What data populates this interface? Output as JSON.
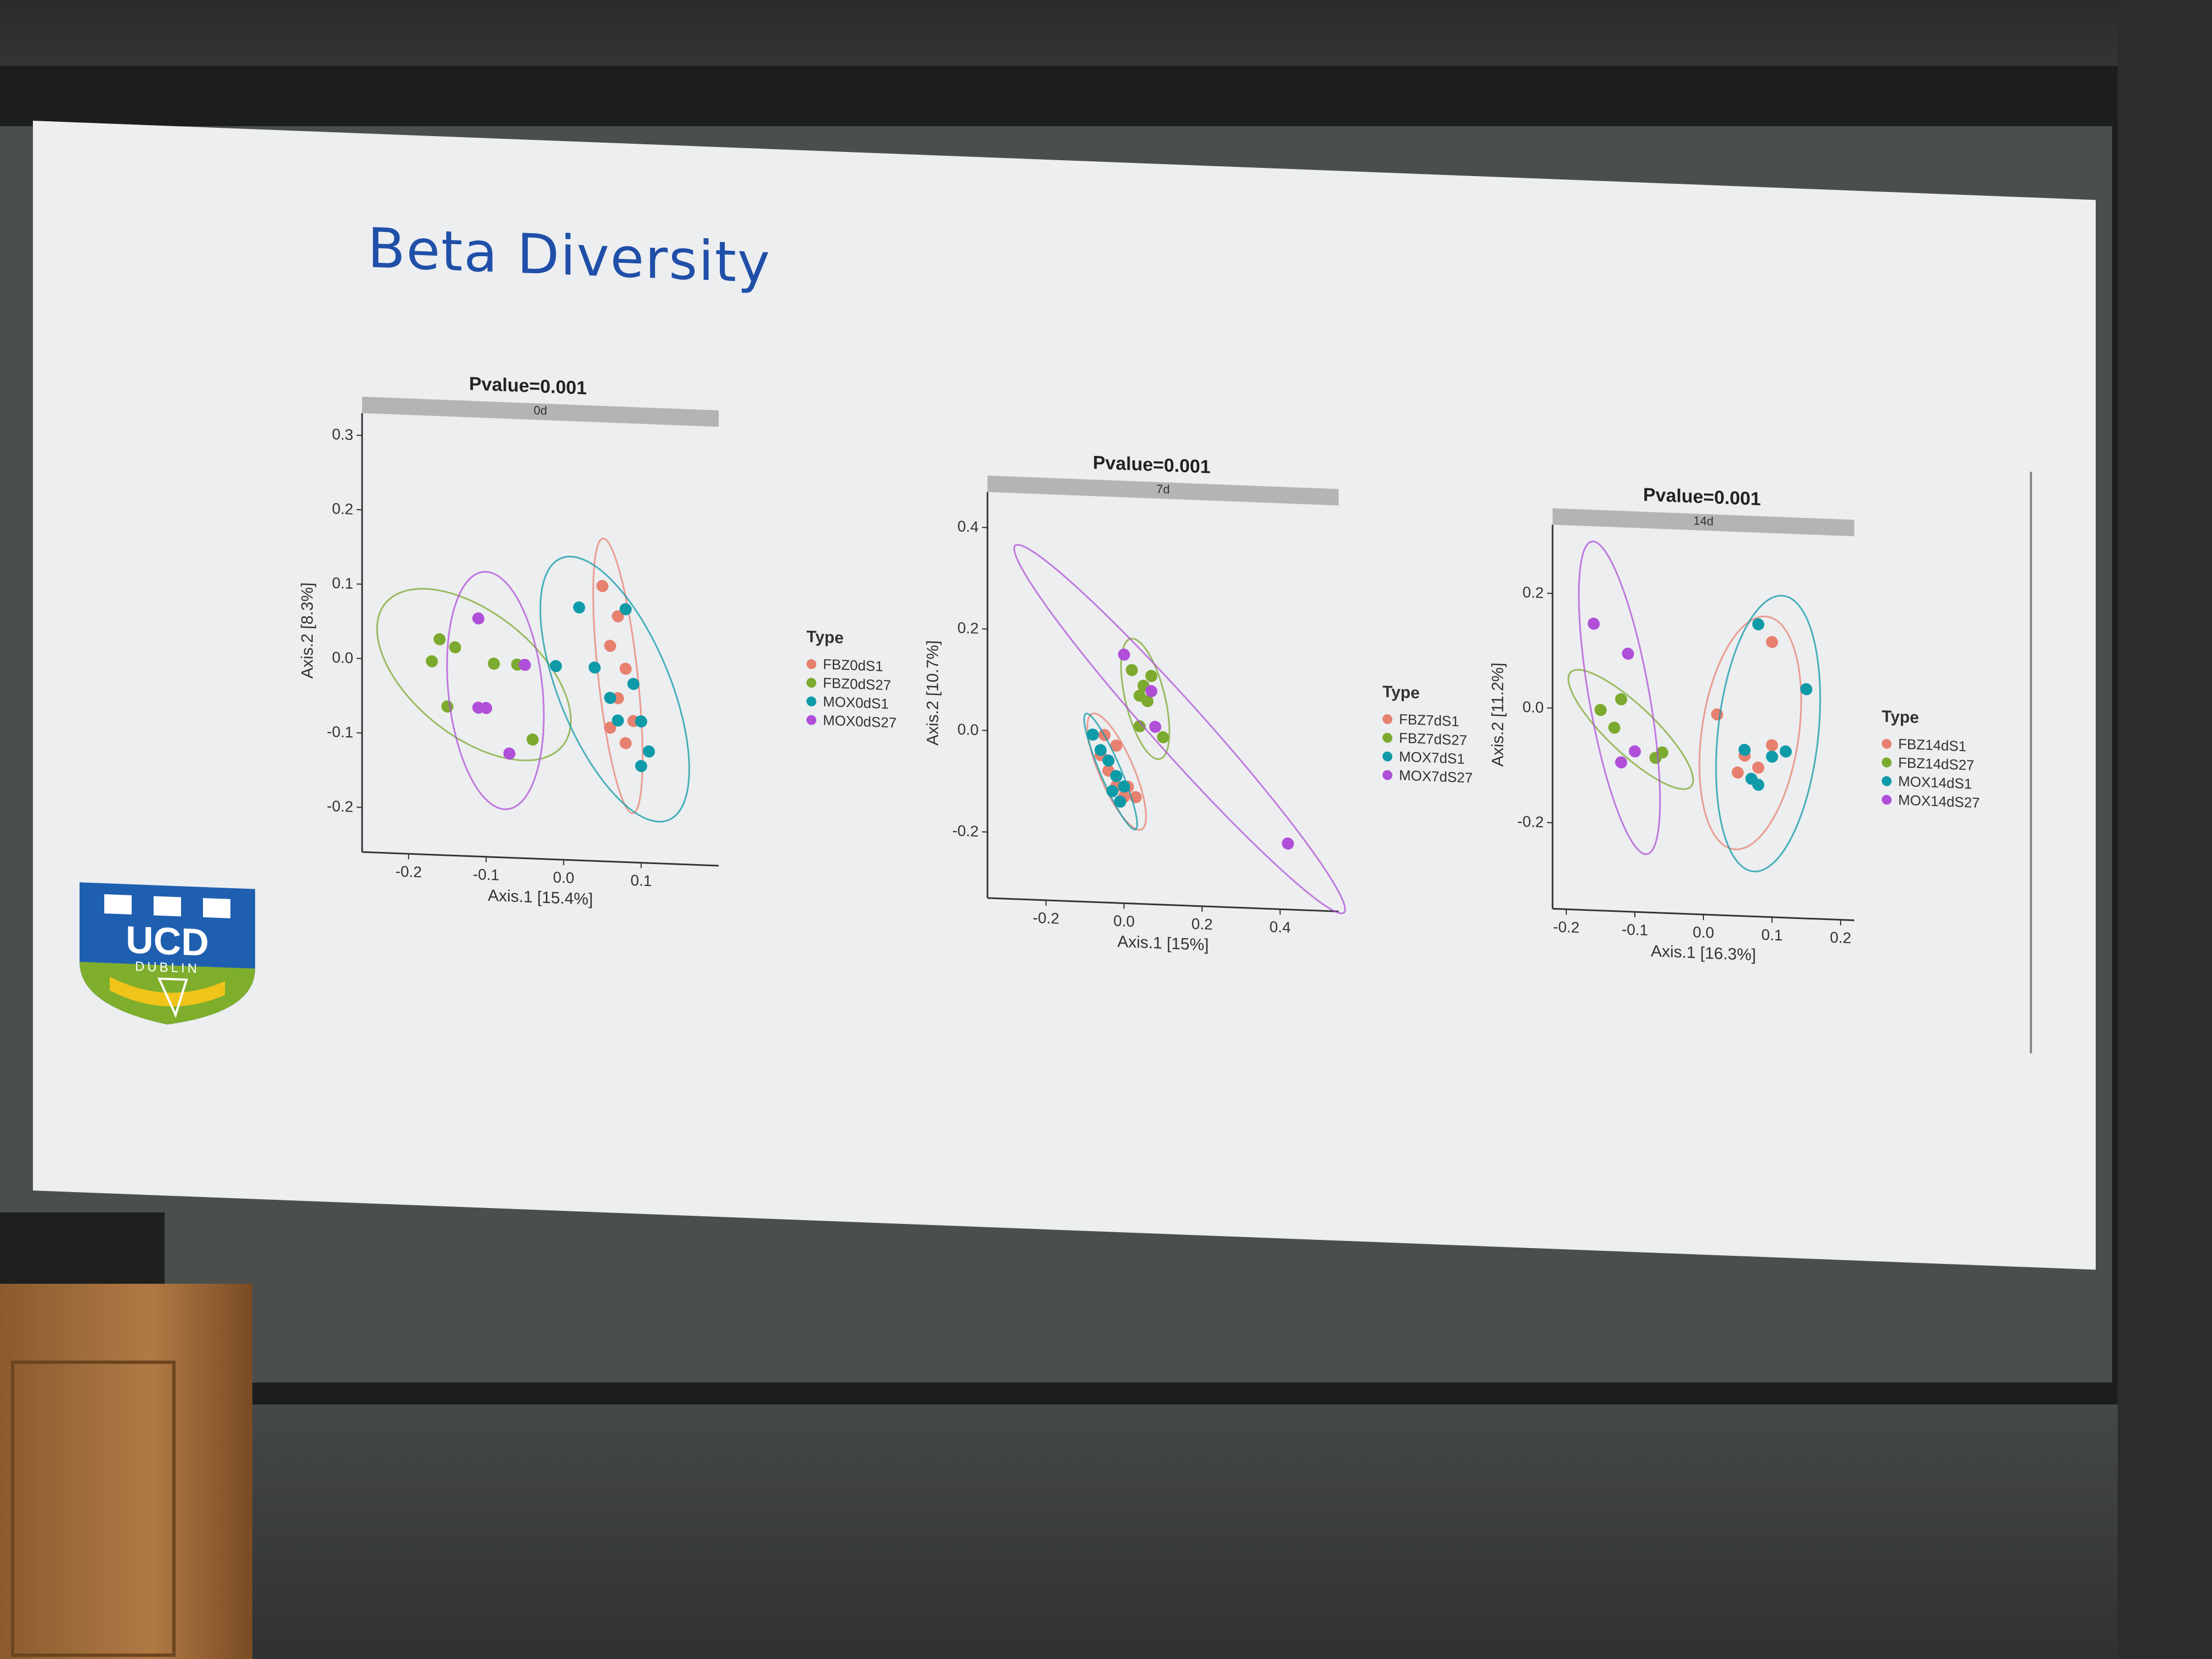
{
  "slide": {
    "title": "Beta Diversity",
    "logo": {
      "text": "UCD",
      "subtext": "DUBLIN"
    }
  },
  "legend_title": "Type",
  "colors": {
    "fbz_s1": "#e8806f",
    "fbz_s27": "#7caa2e",
    "mox_s1": "#0f9aa8",
    "mox_s27": "#b04fd8"
  },
  "chart_data": [
    {
      "type": "scatter",
      "title": "Pvalue=0.001",
      "facet": "0d",
      "xlabel": "Axis.1   [15.4%]",
      "ylabel": "Axis.2  [8.3%]",
      "xticks": [
        "-0.2",
        "-0.1",
        "0.0",
        "0.1"
      ],
      "yticks": [
        "0.3",
        "0.2",
        "0.1",
        "0.0",
        "-0.1",
        "-0.2"
      ],
      "xlim": [
        -0.26,
        0.2
      ],
      "ylim": [
        -0.26,
        0.33
      ],
      "series": [
        {
          "name": "FBZ0dS1",
          "color": "#e8806f",
          "points": [
            [
              0.05,
              0.11
            ],
            [
              0.07,
              0.07
            ],
            [
              0.06,
              0.03
            ],
            [
              0.08,
              0.0
            ],
            [
              0.07,
              -0.04
            ],
            [
              0.06,
              -0.08
            ],
            [
              0.09,
              -0.07
            ],
            [
              0.08,
              -0.1
            ]
          ]
        },
        {
          "name": "FBZ0dS27",
          "color": "#7caa2e",
          "points": [
            [
              -0.16,
              0.03
            ],
            [
              -0.17,
              0.0
            ],
            [
              -0.14,
              0.02
            ],
            [
              -0.15,
              -0.06
            ],
            [
              -0.09,
              0.0
            ],
            [
              -0.06,
              0.0
            ],
            [
              -0.04,
              -0.1
            ]
          ]
        },
        {
          "name": "MOX0dS1",
          "color": "#0f9aa8",
          "points": [
            [
              0.02,
              0.08
            ],
            [
              0.08,
              0.08
            ],
            [
              -0.01,
              0.0
            ],
            [
              0.04,
              0.0
            ],
            [
              0.09,
              -0.02
            ],
            [
              0.06,
              -0.04
            ],
            [
              0.1,
              -0.07
            ],
            [
              0.11,
              -0.11
            ],
            [
              0.07,
              -0.07
            ],
            [
              0.1,
              -0.13
            ]
          ]
        },
        {
          "name": "MOX0dS27",
          "color": "#b04fd8",
          "points": [
            [
              -0.11,
              0.06
            ],
            [
              -0.1,
              -0.06
            ],
            [
              -0.11,
              -0.06
            ],
            [
              -0.07,
              -0.12
            ],
            [
              -0.05,
              0.0
            ]
          ]
        }
      ]
    },
    {
      "type": "scatter",
      "title": "Pvalue=0.001",
      "facet": "7d",
      "xlabel": "Axis.1   [15%]",
      "ylabel": "Axis.2  [10.7%]",
      "xticks": [
        "-0.2",
        "0.0",
        "0.2",
        "0.4"
      ],
      "yticks": [
        "0.4",
        "0.2",
        "0.0",
        "-0.2"
      ],
      "xlim": [
        -0.35,
        0.55
      ],
      "ylim": [
        -0.33,
        0.47
      ],
      "series": [
        {
          "name": "FBZ7dS1",
          "color": "#e8806f",
          "points": [
            [
              -0.06,
              -0.04
            ],
            [
              -0.04,
              -0.07
            ],
            [
              -0.02,
              -0.1
            ],
            [
              0.01,
              -0.1
            ],
            [
              0.03,
              -0.12
            ],
            [
              -0.05,
              0.0
            ],
            [
              -0.02,
              -0.02
            ],
            [
              0.0,
              -0.12
            ]
          ]
        },
        {
          "name": "FBZ7dS27",
          "color": "#7caa2e",
          "points": [
            [
              0.02,
              0.13
            ],
            [
              0.05,
              0.1
            ],
            [
              0.07,
              0.12
            ],
            [
              0.04,
              0.08
            ],
            [
              0.06,
              0.07
            ],
            [
              0.04,
              0.02
            ],
            [
              0.1,
              0.0
            ]
          ]
        },
        {
          "name": "MOX7dS1",
          "color": "#0f9aa8",
          "points": [
            [
              -0.08,
              0.0
            ],
            [
              -0.06,
              -0.03
            ],
            [
              -0.04,
              -0.05
            ],
            [
              -0.02,
              -0.08
            ],
            [
              -0.03,
              -0.11
            ],
            [
              -0.01,
              -0.13
            ],
            [
              0.0,
              -0.1
            ]
          ]
        },
        {
          "name": "MOX7dS27",
          "color": "#b04fd8",
          "points": [
            [
              0.0,
              0.16
            ],
            [
              0.07,
              0.09
            ],
            [
              0.08,
              0.02
            ],
            [
              0.42,
              -0.2
            ]
          ]
        }
      ]
    },
    {
      "type": "scatter",
      "title": "Pvalue=0.001",
      "facet": "14d",
      "xlabel": "Axis.1  [16.3%]",
      "ylabel": "Axis.2  [11.2%]",
      "xticks": [
        "-0.2",
        "-0.1",
        "0.0",
        "0.1",
        "0.2"
      ],
      "yticks": [
        "0.2",
        "0.0",
        "-0.2"
      ],
      "xlim": [
        -0.22,
        0.22
      ],
      "ylim": [
        -0.35,
        0.32
      ],
      "series": [
        {
          "name": "FBZ14dS1",
          "color": "#e8806f",
          "points": [
            [
              0.1,
              0.13
            ],
            [
              0.02,
              0.0
            ],
            [
              0.06,
              -0.07
            ],
            [
              0.08,
              -0.09
            ],
            [
              0.1,
              -0.05
            ],
            [
              0.05,
              -0.1
            ]
          ]
        },
        {
          "name": "FBZ14dS27",
          "color": "#7caa2e",
          "points": [
            [
              -0.15,
              0.0
            ],
            [
              -0.12,
              0.02
            ],
            [
              -0.13,
              -0.03
            ],
            [
              -0.06,
              -0.07
            ],
            [
              -0.07,
              -0.08
            ]
          ]
        },
        {
          "name": "MOX14dS1",
          "color": "#0f9aa8",
          "points": [
            [
              0.08,
              0.16
            ],
            [
              0.15,
              0.05
            ],
            [
              0.06,
              -0.06
            ],
            [
              0.1,
              -0.07
            ],
            [
              0.12,
              -0.06
            ],
            [
              0.08,
              -0.12
            ],
            [
              0.07,
              -0.11
            ]
          ]
        },
        {
          "name": "MOX14dS27",
          "color": "#b04fd8",
          "points": [
            [
              -0.16,
              0.15
            ],
            [
              -0.11,
              0.1
            ],
            [
              -0.1,
              -0.07
            ],
            [
              -0.12,
              -0.09
            ]
          ]
        }
      ]
    }
  ]
}
